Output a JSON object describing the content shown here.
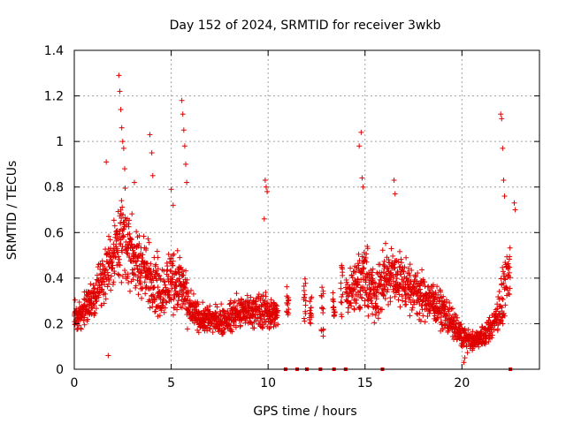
{
  "chart_data": {
    "type": "scatter",
    "title": "Day 152 of 2024, SRMTID for receiver 3wkb",
    "xlabel": "GPS time / hours",
    "ylabel": "SRMTID / TECUs",
    "xlim": [
      0,
      24
    ],
    "ylim": [
      0,
      1.4
    ],
    "x_ticks": [
      0,
      5,
      10,
      15,
      20
    ],
    "x_tick_labels": [
      "0",
      "5",
      "10",
      "15",
      "20"
    ],
    "y_ticks": [
      0,
      0.2,
      0.4,
      0.6,
      0.8,
      1.0,
      1.2,
      1.4
    ],
    "y_tick_labels": [
      "0",
      "0.2",
      "0.4",
      "0.6",
      "0.8",
      "1",
      "1.2",
      "1.4"
    ],
    "grid": true,
    "marker": "+",
    "series": [
      {
        "name": "SRMTID",
        "color": "#e00000",
        "envelope": [
          {
            "x": 0.0,
            "median": 0.22,
            "spread": 0.07
          },
          {
            "x": 0.5,
            "median": 0.26,
            "spread": 0.08
          },
          {
            "x": 1.0,
            "median": 0.32,
            "spread": 0.09
          },
          {
            "x": 1.5,
            "median": 0.4,
            "spread": 0.12
          },
          {
            "x": 2.0,
            "median": 0.52,
            "spread": 0.17
          },
          {
            "x": 2.5,
            "median": 0.58,
            "spread": 0.2
          },
          {
            "x": 3.0,
            "median": 0.5,
            "spread": 0.18
          },
          {
            "x": 3.5,
            "median": 0.44,
            "spread": 0.16
          },
          {
            "x": 4.0,
            "median": 0.4,
            "spread": 0.15
          },
          {
            "x": 4.5,
            "median": 0.34,
            "spread": 0.13
          },
          {
            "x": 5.0,
            "median": 0.4,
            "spread": 0.16
          },
          {
            "x": 5.5,
            "median": 0.38,
            "spread": 0.15
          },
          {
            "x": 6.0,
            "median": 0.26,
            "spread": 0.08
          },
          {
            "x": 6.5,
            "median": 0.22,
            "spread": 0.06
          },
          {
            "x": 7.0,
            "median": 0.22,
            "spread": 0.07
          },
          {
            "x": 7.5,
            "median": 0.21,
            "spread": 0.07
          },
          {
            "x": 8.0,
            "median": 0.22,
            "spread": 0.07
          },
          {
            "x": 8.5,
            "median": 0.25,
            "spread": 0.08
          },
          {
            "x": 9.0,
            "median": 0.26,
            "spread": 0.08
          },
          {
            "x": 9.5,
            "median": 0.26,
            "spread": 0.09
          },
          {
            "x": 10.0,
            "median": 0.25,
            "spread": 0.08
          },
          {
            "x": 10.5,
            "median": 0.24,
            "spread": 0.07
          },
          {
            "x": 14.0,
            "median": 0.32,
            "spread": 0.1
          },
          {
            "x": 14.5,
            "median": 0.38,
            "spread": 0.14
          },
          {
            "x": 15.0,
            "median": 0.4,
            "spread": 0.15
          },
          {
            "x": 15.5,
            "median": 0.32,
            "spread": 0.12
          },
          {
            "x": 16.0,
            "median": 0.38,
            "spread": 0.14
          },
          {
            "x": 16.5,
            "median": 0.42,
            "spread": 0.14
          },
          {
            "x": 17.0,
            "median": 0.38,
            "spread": 0.13
          },
          {
            "x": 17.5,
            "median": 0.34,
            "spread": 0.12
          },
          {
            "x": 18.0,
            "median": 0.32,
            "spread": 0.11
          },
          {
            "x": 18.5,
            "median": 0.3,
            "spread": 0.1
          },
          {
            "x": 19.0,
            "median": 0.26,
            "spread": 0.09
          },
          {
            "x": 19.5,
            "median": 0.2,
            "spread": 0.07
          },
          {
            "x": 20.0,
            "median": 0.15,
            "spread": 0.06
          },
          {
            "x": 20.5,
            "median": 0.12,
            "spread": 0.04
          },
          {
            "x": 21.0,
            "median": 0.14,
            "spread": 0.05
          },
          {
            "x": 21.5,
            "median": 0.18,
            "spread": 0.06
          },
          {
            "x": 22.0,
            "median": 0.28,
            "spread": 0.12
          },
          {
            "x": 22.5,
            "median": 0.42,
            "spread": 0.16
          }
        ],
        "sparse_columns": [
          {
            "x": 11.0,
            "ymin": 0.22,
            "ymax": 0.38
          },
          {
            "x": 11.9,
            "ymin": 0.18,
            "ymax": 0.4
          },
          {
            "x": 12.2,
            "ymin": 0.2,
            "ymax": 0.34
          },
          {
            "x": 12.8,
            "ymin": 0.14,
            "ymax": 0.36
          },
          {
            "x": 13.4,
            "ymin": 0.2,
            "ymax": 0.34
          },
          {
            "x": 13.8,
            "ymin": 0.22,
            "ymax": 0.46
          }
        ],
        "peaks": [
          {
            "x": 1.65,
            "y": 0.91
          },
          {
            "x": 2.3,
            "y": 1.29
          },
          {
            "x": 2.35,
            "y": 1.22
          },
          {
            "x": 2.4,
            "y": 1.14
          },
          {
            "x": 2.45,
            "y": 1.06
          },
          {
            "x": 2.5,
            "y": 1.0
          },
          {
            "x": 2.55,
            "y": 0.97
          },
          {
            "x": 2.6,
            "y": 0.88
          },
          {
            "x": 3.1,
            "y": 0.82
          },
          {
            "x": 3.9,
            "y": 1.03
          },
          {
            "x": 4.0,
            "y": 0.95
          },
          {
            "x": 4.05,
            "y": 0.85
          },
          {
            "x": 5.0,
            "y": 0.79
          },
          {
            "x": 5.1,
            "y": 0.72
          },
          {
            "x": 5.55,
            "y": 1.18
          },
          {
            "x": 5.6,
            "y": 1.12
          },
          {
            "x": 5.65,
            "y": 1.05
          },
          {
            "x": 5.7,
            "y": 0.98
          },
          {
            "x": 5.75,
            "y": 0.9
          },
          {
            "x": 5.8,
            "y": 0.82
          },
          {
            "x": 9.85,
            "y": 0.83
          },
          {
            "x": 9.9,
            "y": 0.8
          },
          {
            "x": 9.95,
            "y": 0.78
          },
          {
            "x": 9.8,
            "y": 0.66
          },
          {
            "x": 14.7,
            "y": 0.98
          },
          {
            "x": 14.8,
            "y": 1.04
          },
          {
            "x": 14.85,
            "y": 0.84
          },
          {
            "x": 14.9,
            "y": 0.8
          },
          {
            "x": 16.5,
            "y": 0.83
          },
          {
            "x": 16.55,
            "y": 0.77
          },
          {
            "x": 22.0,
            "y": 1.12
          },
          {
            "x": 22.05,
            "y": 1.1
          },
          {
            "x": 22.1,
            "y": 0.97
          },
          {
            "x": 22.15,
            "y": 0.83
          },
          {
            "x": 22.2,
            "y": 0.76
          },
          {
            "x": 22.7,
            "y": 0.73
          },
          {
            "x": 22.75,
            "y": 0.7
          },
          {
            "x": 20.1,
            "y": 0.03
          },
          {
            "x": 20.15,
            "y": 0.05
          },
          {
            "x": 1.75,
            "y": 0.06
          }
        ],
        "zero_points": [
          {
            "x": 10.9,
            "y": 0
          },
          {
            "x": 11.5,
            "y": 0
          },
          {
            "x": 12.0,
            "y": 0
          },
          {
            "x": 12.7,
            "y": 0
          },
          {
            "x": 13.4,
            "y": 0
          },
          {
            "x": 14.0,
            "y": 0
          },
          {
            "x": 15.9,
            "y": 0
          },
          {
            "x": 22.5,
            "y": 0
          }
        ]
      }
    ]
  }
}
